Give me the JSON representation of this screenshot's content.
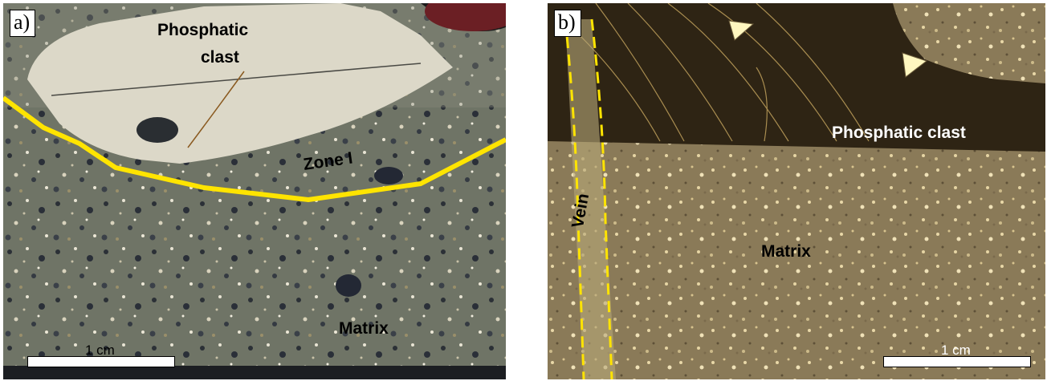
{
  "figure": {
    "panels": [
      {
        "label": "a)",
        "annotations": {
          "phosphatic_clast_line1": "Phosphatic",
          "phosphatic_clast_line2": "clast",
          "zone": "Zone I",
          "matrix": "Matrix"
        },
        "scale_bar": "1 cm",
        "colors": {
          "boundary_line": "#FFE400",
          "clast": "#DCD8C8",
          "matrix": "#7A7D70"
        }
      },
      {
        "label": "b)",
        "annotations": {
          "phosphatic_clast": "Phosphatic clast",
          "matrix": "Matrix",
          "vein": "Vein"
        },
        "scale_bar": "1 cm",
        "colors": {
          "vein_outline": "#FFE400",
          "arrow": "#FFF7C0",
          "clast": "#2E2414",
          "matrix": "#8C7A55"
        }
      }
    ]
  }
}
